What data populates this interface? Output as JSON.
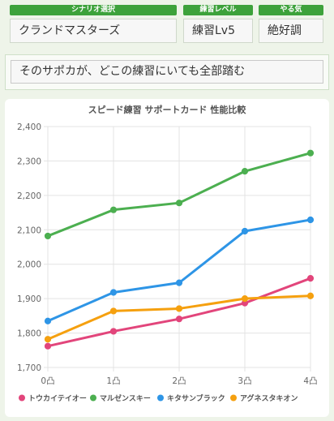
{
  "header": {
    "scenario_label": "シナリオ選択",
    "level_label": "練習レベル",
    "motivation_label": "やる気"
  },
  "selection": {
    "scenario": "クランドマスターズ",
    "level": "練習Lv5",
    "motivation": "絶好調"
  },
  "condition": {
    "text": "そのサポカが、どこの練習にいても全部踏む"
  },
  "colors": {
    "header_green": "#3da23b",
    "series": [
      "#e2457b",
      "#4caf50",
      "#2e95e6",
      "#f5a00f"
    ]
  },
  "chart_data": {
    "type": "line",
    "title": "スピード練習 サポートカード 性能比較",
    "x": [
      "0凸",
      "1凸",
      "2凸",
      "3凸",
      "4凸"
    ],
    "ylim": [
      1700,
      2400
    ],
    "yticks": [
      "1,700",
      "1,800",
      "1,900",
      "2,000",
      "2,100",
      "2,200",
      "2,300",
      "2,400"
    ],
    "grid": true,
    "legend_position": "bottom",
    "series": [
      {
        "name": "トウカイテイオー",
        "color": "#e2457b",
        "values": [
          1762,
          1805,
          1841,
          1887,
          1959
        ]
      },
      {
        "name": "マルゼンスキー",
        "color": "#4caf50",
        "values": [
          2082,
          2158,
          2178,
          2270,
          2323
        ]
      },
      {
        "name": "キタサンブラック",
        "color": "#2e95e6",
        "values": [
          1835,
          1918,
          1946,
          2096,
          2129
        ]
      },
      {
        "name": "アグネスタキオン",
        "color": "#f5a00f",
        "values": [
          1782,
          1864,
          1871,
          1900,
          1908
        ]
      }
    ]
  }
}
